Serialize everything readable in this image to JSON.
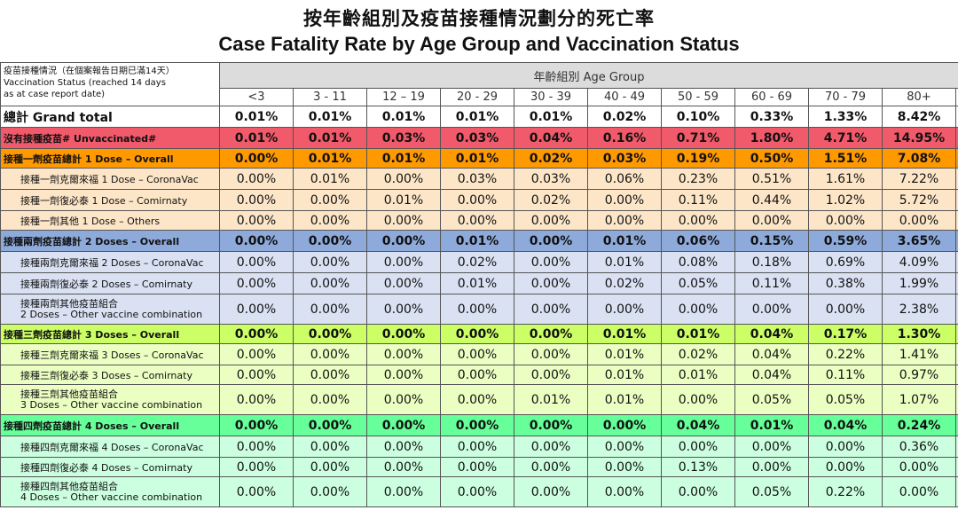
{
  "title_zh": "按年齡組別及疫苗接種情況劃分的死亡率",
  "title_en": "Case Fatality Rate by Age Group and Vaccination Status",
  "corner": {
    "line1": "疫苗接種情況（在個案報告日期已滿14天）",
    "line2": "Vaccination Status (reached 14 days",
    "line3": "as at case report date)"
  },
  "age_group_label": "年齡組別 Age Group",
  "age_groups": [
    "<3",
    "3 - 11",
    "12 – 19",
    "20 - 29",
    "30 - 39",
    "40 - 49",
    "50 - 59",
    "60 - 69",
    "70 - 79",
    "80+"
  ],
  "rows": [
    {
      "label": "總計 Grand total",
      "values": [
        "0.01%",
        "0.01%",
        "0.01%",
        "0.01%",
        "0.01%",
        "0.02%",
        "0.10%",
        "0.33%",
        "1.33%",
        "8.42%"
      ]
    },
    {
      "label": "沒有接種疫苗# Unvaccinated#",
      "values": [
        "0.01%",
        "0.01%",
        "0.03%",
        "0.03%",
        "0.04%",
        "0.16%",
        "0.71%",
        "1.80%",
        "4.71%",
        "14.95%"
      ]
    },
    {
      "label": "接種一劑疫苗總計 1 Dose – Overall",
      "values": [
        "0.00%",
        "0.01%",
        "0.01%",
        "0.01%",
        "0.02%",
        "0.03%",
        "0.19%",
        "0.50%",
        "1.51%",
        "7.08%"
      ]
    },
    {
      "label": "接種一劑克爾來福 1 Dose – CoronaVac",
      "values": [
        "0.00%",
        "0.01%",
        "0.00%",
        "0.03%",
        "0.03%",
        "0.06%",
        "0.23%",
        "0.51%",
        "1.61%",
        "7.22%"
      ]
    },
    {
      "label": "接種一劑復必泰 1 Dose – Comirnaty",
      "values": [
        "0.00%",
        "0.00%",
        "0.01%",
        "0.00%",
        "0.02%",
        "0.00%",
        "0.11%",
        "0.44%",
        "1.02%",
        "5.72%"
      ]
    },
    {
      "label": "接種一劑其他 1 Dose – Others",
      "values": [
        "0.00%",
        "0.00%",
        "0.00%",
        "0.00%",
        "0.00%",
        "0.00%",
        "0.00%",
        "0.00%",
        "0.00%",
        "0.00%"
      ]
    },
    {
      "label": "接種兩劑疫苗總計 2 Doses – Overall",
      "values": [
        "0.00%",
        "0.00%",
        "0.00%",
        "0.01%",
        "0.00%",
        "0.01%",
        "0.06%",
        "0.15%",
        "0.59%",
        "3.65%"
      ]
    },
    {
      "label": "接種兩劑克爾來福 2 Doses – CoronaVac",
      "values": [
        "0.00%",
        "0.00%",
        "0.00%",
        "0.02%",
        "0.00%",
        "0.01%",
        "0.08%",
        "0.18%",
        "0.69%",
        "4.09%"
      ]
    },
    {
      "label": "接種兩劑復必泰 2 Doses – Comirnaty",
      "values": [
        "0.00%",
        "0.00%",
        "0.00%",
        "0.01%",
        "0.00%",
        "0.02%",
        "0.05%",
        "0.11%",
        "0.38%",
        "1.99%"
      ]
    },
    {
      "label": "接種兩劑其他疫苗組合",
      "label2": "2 Doses – Other vaccine combination",
      "values": [
        "0.00%",
        "0.00%",
        "0.00%",
        "0.00%",
        "0.00%",
        "0.00%",
        "0.00%",
        "0.00%",
        "0.00%",
        "2.38%"
      ]
    },
    {
      "label": "接種三劑疫苗總計 3 Doses – Overall",
      "values": [
        "0.00%",
        "0.00%",
        "0.00%",
        "0.00%",
        "0.00%",
        "0.01%",
        "0.01%",
        "0.04%",
        "0.17%",
        "1.30%"
      ]
    },
    {
      "label": "接種三劑克爾來福 3 Doses – CoronaVac",
      "values": [
        "0.00%",
        "0.00%",
        "0.00%",
        "0.00%",
        "0.00%",
        "0.01%",
        "0.02%",
        "0.04%",
        "0.22%",
        "1.41%"
      ]
    },
    {
      "label": "接種三劑復必泰 3 Doses – Comirnaty",
      "values": [
        "0.00%",
        "0.00%",
        "0.00%",
        "0.00%",
        "0.00%",
        "0.01%",
        "0.01%",
        "0.04%",
        "0.11%",
        "0.97%"
      ]
    },
    {
      "label": "接種三劑其他疫苗組合",
      "label2": "3 Doses – Other vaccine combination",
      "values": [
        "0.00%",
        "0.00%",
        "0.00%",
        "0.00%",
        "0.01%",
        "0.01%",
        "0.00%",
        "0.05%",
        "0.05%",
        "1.07%"
      ]
    },
    {
      "label": "接種四劑疫苗總計 4 Doses – Overall",
      "values": [
        "0.00%",
        "0.00%",
        "0.00%",
        "0.00%",
        "0.00%",
        "0.00%",
        "0.04%",
        "0.01%",
        "0.04%",
        "0.24%"
      ]
    },
    {
      "label": "接種四劑克爾來福 4 Doses – CoronaVac",
      "values": [
        "0.00%",
        "0.00%",
        "0.00%",
        "0.00%",
        "0.00%",
        "0.00%",
        "0.00%",
        "0.00%",
        "0.00%",
        "0.36%"
      ]
    },
    {
      "label": "接種四劑復必泰 4 Doses – Comirnaty",
      "values": [
        "0.00%",
        "0.00%",
        "0.00%",
        "0.00%",
        "0.00%",
        "0.00%",
        "0.13%",
        "0.00%",
        "0.00%",
        "0.00%"
      ]
    },
    {
      "label": "接種四劑其他疫苗組合",
      "label2": "4 Doses – Other vaccine combination",
      "values": [
        "0.00%",
        "0.00%",
        "0.00%",
        "0.00%",
        "0.00%",
        "0.00%",
        "0.00%",
        "0.05%",
        "0.22%",
        "0.00%"
      ]
    }
  ]
}
